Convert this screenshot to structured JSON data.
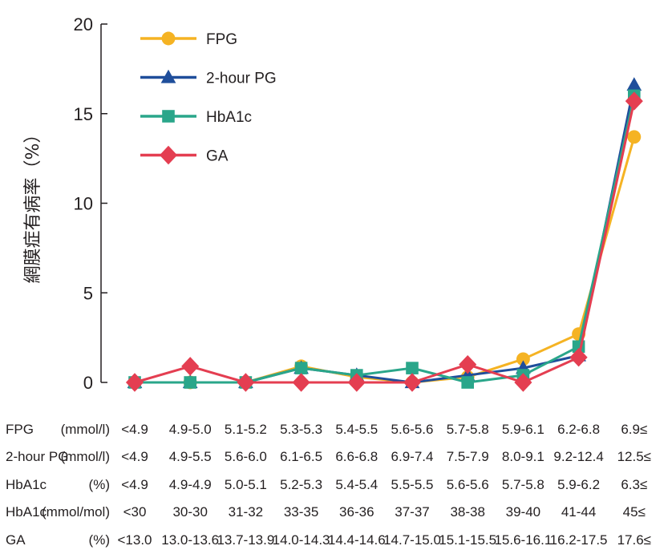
{
  "chart_data": {
    "type": "line",
    "ylabel": "網膜症有病率（%）",
    "ylim": [
      0,
      20
    ],
    "yticks": [
      0,
      5,
      10,
      15,
      20
    ],
    "grid": false,
    "legend_position": "top-left",
    "x": [
      1,
      2,
      3,
      4,
      5,
      6,
      7,
      8,
      9,
      10
    ],
    "series": [
      {
        "name": "FPG",
        "color": "#f5b323",
        "marker": "circle",
        "values": [
          0,
          0,
          0,
          0.9,
          0.3,
          0,
          0.3,
          1.3,
          2.7,
          13.7
        ]
      },
      {
        "name": "2-hour PG",
        "color": "#1f4e9b",
        "marker": "triangle",
        "values": [
          0,
          0,
          0,
          0.8,
          0.4,
          0,
          0.4,
          0.8,
          1.5,
          16.6
        ]
      },
      {
        "name": "HbA1c",
        "color": "#2aa68a",
        "marker": "square",
        "values": [
          0,
          0,
          0,
          0.8,
          0.4,
          0.8,
          0,
          0.4,
          2.0,
          16.0
        ]
      },
      {
        "name": "GA",
        "color": "#e43e51",
        "marker": "diamond",
        "values": [
          0,
          0.9,
          0,
          0,
          0,
          0,
          1.0,
          0,
          1.4,
          15.7
        ]
      }
    ]
  },
  "table": {
    "rows": [
      {
        "name": "FPG",
        "unit": "(mmol/l)",
        "cells": [
          "<4.9",
          "4.9-5.0",
          "5.1-5.2",
          "5.3-5.3",
          "5.4-5.5",
          "5.6-5.6",
          "5.7-5.8",
          "5.9-6.1",
          "6.2-6.8",
          "6.9≤"
        ]
      },
      {
        "name": "2-hour PG",
        "unit": "(mmol/l)",
        "cells": [
          "<4.9",
          "4.9-5.5",
          "5.6-6.0",
          "6.1-6.5",
          "6.6-6.8",
          "6.9-7.4",
          "7.5-7.9",
          "8.0-9.1",
          "9.2-12.4",
          "12.5≤"
        ]
      },
      {
        "name": "HbA1c",
        "unit": "(%)",
        "cells": [
          "<4.9",
          "4.9-4.9",
          "5.0-5.1",
          "5.2-5.3",
          "5.4-5.4",
          "5.5-5.5",
          "5.6-5.6",
          "5.7-5.8",
          "5.9-6.2",
          "6.3≤"
        ]
      },
      {
        "name": "HbA1c",
        "unit": "(mmol/mol)",
        "cells": [
          "<30",
          "30-30",
          "31-32",
          "33-35",
          "36-36",
          "37-37",
          "38-38",
          "39-40",
          "41-44",
          "45≤"
        ]
      },
      {
        "name": "GA",
        "unit": "(%)",
        "cells": [
          "<13.0",
          "13.0-13.6",
          "13.7-13.9",
          "14.0-14.3",
          "14.4-14.6",
          "14.7-15.0",
          "15.1-15.5",
          "15.6-16.1",
          "16.2-17.5",
          "17.6≤"
        ]
      }
    ]
  }
}
